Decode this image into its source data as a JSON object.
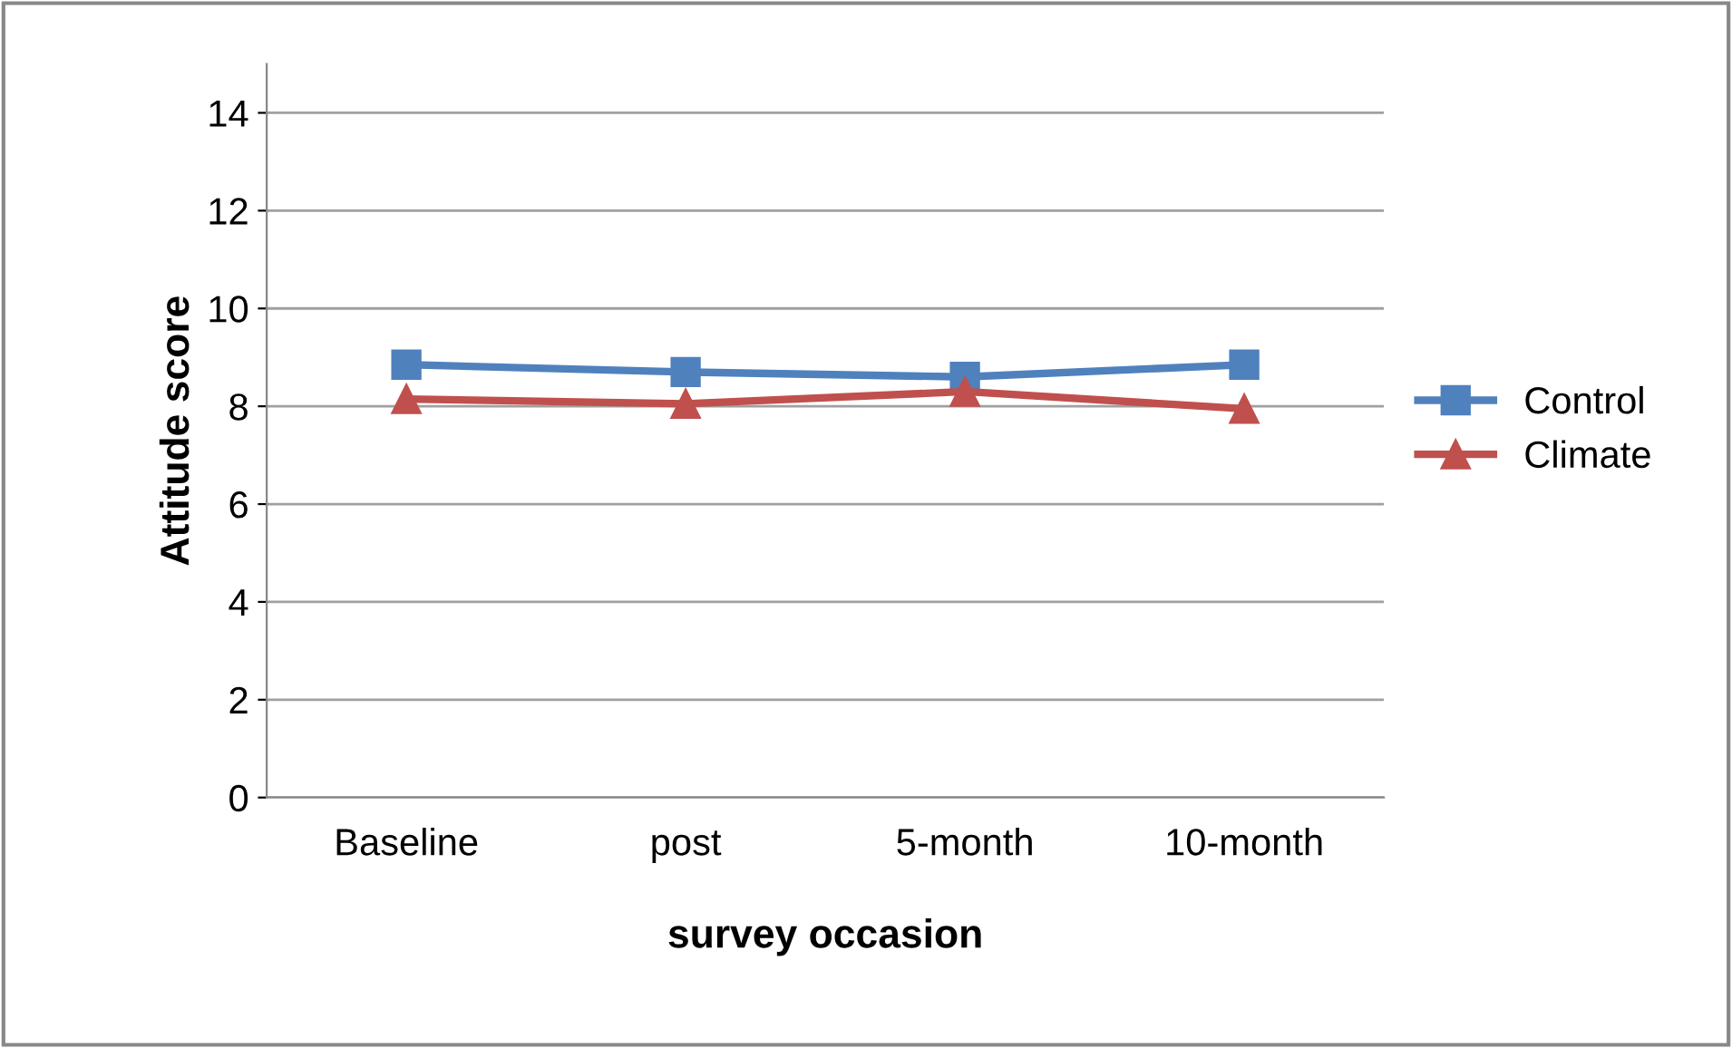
{
  "chart_data": {
    "type": "line",
    "xlabel": "survey occasion",
    "ylabel": "Attitude score",
    "categories": [
      "Baseline",
      "post",
      "5-month",
      "10-month"
    ],
    "series": [
      {
        "name": "Control",
        "color": "#4f81bd",
        "values": [
          8.85,
          8.7,
          8.6,
          8.85
        ],
        "marker": "square"
      },
      {
        "name": "Climate",
        "color": "#c0504d",
        "values": [
          8.15,
          8.05,
          8.3,
          7.95
        ],
        "marker": "triangle"
      }
    ],
    "ylim": [
      0,
      15
    ],
    "yticks": [
      0,
      2,
      4,
      6,
      8,
      10,
      12,
      14
    ],
    "grid": "y",
    "legend": "right",
    "line_style": "solid"
  }
}
